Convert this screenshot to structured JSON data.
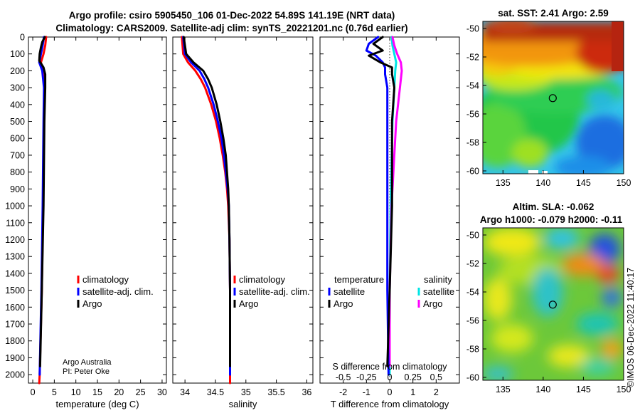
{
  "title_line1": "Argo profile: csiro 5905450_106 01-Dec-2022 54.89S 141.19E (NRT data)",
  "title_line2": "Climatology: CARS2009. Satellite-adj clim: synTS_20221201.nc (0.76d earlier)",
  "credit_line1": "Argo Australia",
  "credit_line2": "PI: Peter Oke",
  "copyright": "©IMOS 06-Dec-2022 11:40:17",
  "colors": {
    "climatology": "#ff0000",
    "satellite": "#0000ff",
    "argo": "#000000",
    "sat_salinity": "#00e5e5",
    "argo_salinity": "#ff00ff"
  },
  "chart_data": [
    {
      "type": "line",
      "name": "temperature-profile",
      "xlabel": "temperature (deg C)",
      "xlim": [
        -1,
        31
      ],
      "ylim": [
        2050,
        0
      ],
      "xticks": [
        "0",
        "5",
        "10",
        "15",
        "20",
        "25",
        "30"
      ],
      "yticks": [
        "0",
        "100",
        "200",
        "300",
        "400",
        "500",
        "600",
        "700",
        "800",
        "900",
        "1000",
        "1100",
        "1200",
        "1300",
        "1400",
        "1500",
        "1600",
        "1700",
        "1800",
        "1900",
        "2000"
      ],
      "legend": [
        "climatology",
        "satellite-adj. clim.",
        "Argo"
      ],
      "series": [
        {
          "name": "climatology",
          "depth": [
            0,
            50,
            100,
            150,
            200,
            300,
            500,
            1000,
            1500,
            2000,
            2050
          ],
          "values": [
            3.1,
            2.9,
            2.5,
            1.9,
            2.4,
            2.7,
            2.6,
            2.4,
            2.1,
            1.6,
            1.5
          ]
        },
        {
          "name": "satellite-adj. clim.",
          "depth": [
            0,
            50,
            100,
            150,
            200,
            300,
            500,
            1000,
            1500,
            2000
          ],
          "values": [
            2.6,
            2.3,
            1.9,
            1.5,
            2.2,
            2.6,
            2.5,
            2.3,
            2.0,
            1.6
          ]
        },
        {
          "name": "Argo",
          "depth": [
            0,
            30,
            60,
            100,
            140,
            180,
            220,
            300,
            500,
            1000,
            1500,
            1950
          ],
          "values": [
            2.8,
            2.2,
            1.9,
            1.6,
            1.5,
            2.5,
            2.9,
            2.9,
            2.7,
            2.5,
            2.1,
            1.7
          ]
        }
      ]
    },
    {
      "type": "line",
      "name": "salinity-profile",
      "xlabel": "salinity",
      "xlim": [
        33.8,
        36.1
      ],
      "ylim": [
        2050,
        0
      ],
      "xticks": [
        "34",
        "34.5",
        "35",
        "35.5",
        "36"
      ],
      "legend": [
        "climatology",
        "satellite-adj. clim.",
        "Argo"
      ],
      "series": [
        {
          "name": "climatology",
          "depth": [
            0,
            100,
            150,
            200,
            250,
            300,
            400,
            500,
            600,
            700,
            800,
            900,
            1000,
            1200,
            1500,
            2050
          ],
          "values": [
            33.95,
            33.97,
            34.05,
            34.17,
            34.26,
            34.33,
            34.43,
            34.51,
            34.57,
            34.62,
            34.66,
            34.69,
            34.71,
            34.73,
            34.74,
            34.74
          ]
        },
        {
          "name": "satellite-adj. clim.",
          "depth": [
            0,
            100,
            150,
            200,
            250,
            300,
            400,
            500,
            600,
            700,
            800,
            900,
            1000,
            1200,
            1500,
            2000
          ],
          "values": [
            33.97,
            34.0,
            34.1,
            34.24,
            34.32,
            34.38,
            34.47,
            34.54,
            34.6,
            34.64,
            34.67,
            34.7,
            34.72,
            34.73,
            34.74,
            34.74
          ]
        },
        {
          "name": "Argo",
          "depth": [
            0,
            100,
            150,
            200,
            250,
            300,
            400,
            500,
            600,
            700,
            800,
            900,
            1000,
            1200,
            1500,
            1950
          ],
          "values": [
            33.98,
            34.02,
            34.14,
            34.3,
            34.38,
            34.44,
            34.52,
            34.58,
            34.63,
            34.67,
            34.69,
            34.71,
            34.72,
            34.73,
            34.74,
            34.74
          ]
        }
      ]
    },
    {
      "type": "line",
      "name": "difference-profile",
      "xlabel": "T difference from climatology",
      "xlabel_top": "S difference from climatology",
      "xlim": [
        -3,
        3
      ],
      "ylim": [
        2050,
        0
      ],
      "xticks": [
        "-2",
        "-1",
        "0",
        "1",
        "2"
      ],
      "xticks_top": [
        "-0.5",
        "-0.25",
        "0",
        "0.25",
        "0.5"
      ],
      "legend_titles": [
        "temperature",
        "salinity"
      ],
      "legend_left": [
        "satellite",
        "Argo"
      ],
      "legend_right": [
        "satellite",
        "Argo"
      ],
      "series": [
        {
          "name": "temperature satellite",
          "depth": [
            0,
            40,
            80,
            110,
            150,
            180,
            220,
            300,
            500,
            1000,
            1500,
            2000
          ],
          "values": [
            -0.5,
            -0.9,
            -1.0,
            -0.6,
            -0.3,
            -0.2,
            -0.2,
            -0.1,
            -0.1,
            -0.1,
            -0.1,
            -0.05
          ]
        },
        {
          "name": "temperature Argo",
          "depth": [
            0,
            40,
            80,
            110,
            150,
            180,
            220,
            300,
            500,
            1000,
            1500,
            1950
          ],
          "values": [
            -0.3,
            -0.7,
            -0.3,
            -0.9,
            -0.4,
            0.1,
            0.1,
            0.2,
            0.1,
            0.1,
            0.0,
            -0.1
          ]
        },
        {
          "name": "salinity satellite",
          "depth": [
            0,
            50,
            100,
            150,
            200,
            300,
            500,
            1000,
            1500,
            2000
          ],
          "values": [
            0.02,
            0.03,
            0.05,
            0.07,
            0.06,
            0.05,
            0.03,
            0.01,
            0.0,
            0.0
          ]
        },
        {
          "name": "salinity Argo",
          "depth": [
            0,
            50,
            100,
            150,
            200,
            300,
            500,
            1000,
            1500,
            1950
          ],
          "values": [
            0.03,
            0.05,
            0.08,
            0.12,
            0.13,
            0.11,
            0.07,
            0.02,
            0.0,
            0.0
          ]
        }
      ]
    },
    {
      "type": "heatmap",
      "name": "sst-map",
      "title": "sat. SST: 2.41 Argo: 2.59",
      "xlim": [
        132.5,
        150
      ],
      "ylim": [
        -60.2,
        -49.5
      ],
      "xticks": [
        "135",
        "140",
        "145",
        "150"
      ],
      "yticks": [
        "-50",
        "-52",
        "-54",
        "-56",
        "-58",
        "-60"
      ],
      "marker": {
        "lon": 141.19,
        "lat": -54.89
      }
    },
    {
      "type": "heatmap",
      "name": "sla-map",
      "title_line1": "Altim. SLA: -0.062",
      "title_line2": "Argo h1000: -0.079 h2000: -0.11",
      "xlim": [
        132.5,
        150
      ],
      "ylim": [
        -60.2,
        -49.5
      ],
      "xticks": [
        "135",
        "140",
        "145",
        "150"
      ],
      "yticks": [
        "-50",
        "-52",
        "-54",
        "-56",
        "-58",
        "-60"
      ],
      "marker": {
        "lon": 141.19,
        "lat": -54.89
      }
    }
  ]
}
